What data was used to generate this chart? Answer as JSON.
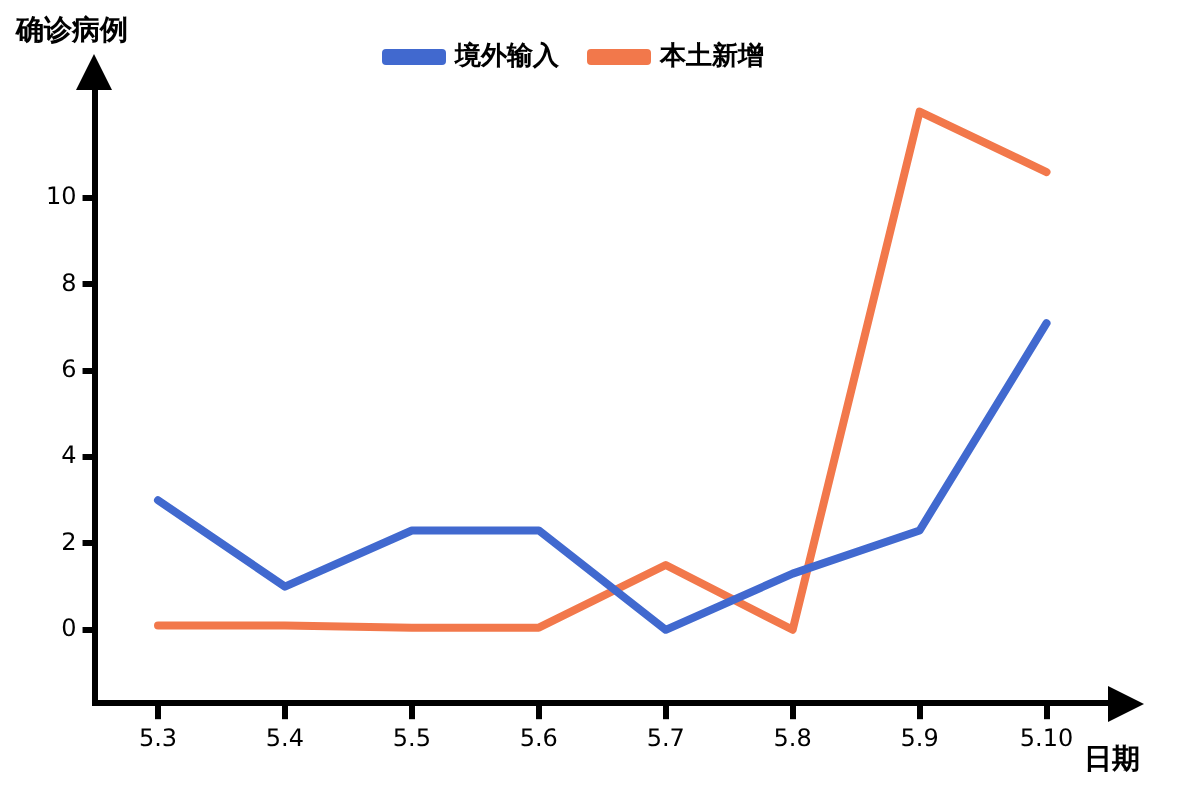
{
  "chart_data": {
    "type": "line",
    "xlabel": "日期",
    "ylabel": "确诊病例",
    "categories": [
      "5.3",
      "5.4",
      "5.5",
      "5.6",
      "5.7",
      "5.8",
      "5.9",
      "5.10"
    ],
    "series": [
      {
        "name": "境外输入",
        "color": "#4169cf",
        "values": [
          3,
          1,
          2.3,
          2.3,
          0,
          1.3,
          2.3,
          7.1
        ]
      },
      {
        "name": "本土新增",
        "color": "#f2784b",
        "values": [
          0.1,
          0.1,
          0.05,
          0.05,
          1.5,
          0,
          12,
          10.6
        ]
      }
    ],
    "ylim": [
      -1.7,
      12.5
    ],
    "yticks": [
      0,
      2,
      4,
      6,
      8,
      10
    ],
    "grid": false,
    "legend": "top",
    "marker": "none",
    "line_style": "solid"
  }
}
